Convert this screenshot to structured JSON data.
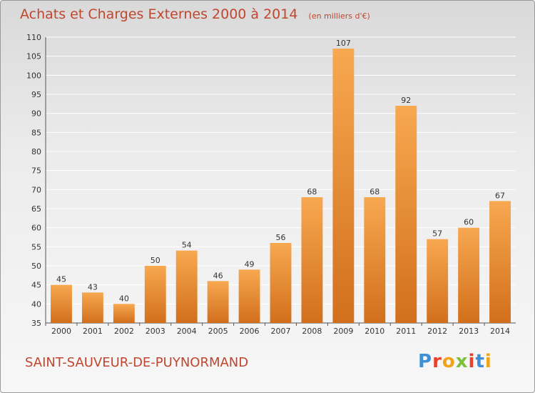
{
  "header": {
    "title": "Achats et Charges Externes 2000 à 2014",
    "unit": "(en milliers d'€)"
  },
  "footer": {
    "city": "SAINT-SAUVEUR-DE-PUYNORMAND",
    "logo_text": "Proxiti"
  },
  "colors": {
    "bar_light": "#f7a850",
    "bar_dark": "#d26f1c",
    "title": "#c0462f",
    "grid": "#ffffff",
    "logo": [
      "#3d8fd6",
      "#e8412a",
      "#f2a215",
      "#7cc03a",
      "#e8412a",
      "#3d8fd6",
      "#f2a215"
    ]
  },
  "chart_data": {
    "type": "bar",
    "categories": [
      "2000",
      "2001",
      "2002",
      "2003",
      "2004",
      "2005",
      "2006",
      "2007",
      "2008",
      "2009",
      "2010",
      "2011",
      "2012",
      "2013",
      "2014"
    ],
    "values": [
      45,
      43,
      40,
      50,
      54,
      46,
      49,
      56,
      68,
      107,
      68,
      92,
      57,
      60,
      67
    ],
    "ylim": [
      35,
      110
    ],
    "yticks": [
      35,
      40,
      45,
      50,
      55,
      60,
      65,
      70,
      75,
      80,
      85,
      90,
      95,
      100,
      105,
      110
    ],
    "grid": true,
    "data_labels": true
  }
}
